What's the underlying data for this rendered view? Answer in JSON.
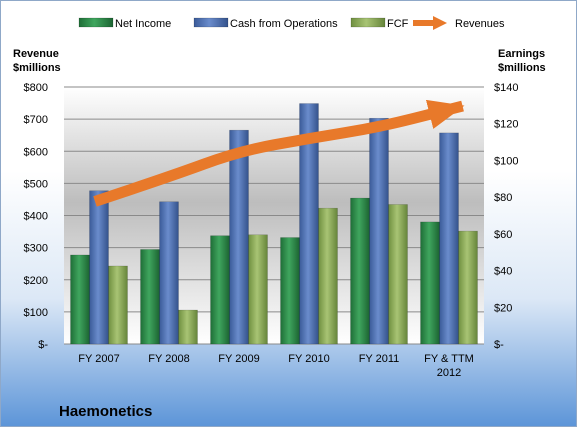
{
  "chart_data": {
    "type": "bar",
    "title": "Haemonetics",
    "categories": [
      [
        "FY 2007"
      ],
      [
        "FY 2008"
      ],
      [
        "FY 2009"
      ],
      [
        "FY 2010"
      ],
      [
        "FY 2011"
      ],
      [
        "FY & TTM",
        "2012"
      ]
    ],
    "left_axis": {
      "title": [
        "Revenue",
        "$millions"
      ],
      "ylim": [
        0,
        800
      ],
      "ticks": [
        0,
        100,
        200,
        300,
        400,
        500,
        600,
        700,
        800
      ],
      "tick_labels": [
        "$-",
        "$100",
        "$200",
        "$300",
        "$400",
        "$500",
        "$600",
        "$700",
        "$800"
      ]
    },
    "right_axis": {
      "title": [
        "Earnings",
        "$millions"
      ],
      "ylim": [
        0,
        140
      ],
      "ticks": [
        0,
        20,
        40,
        60,
        80,
        100,
        120,
        140
      ],
      "tick_labels": [
        "$-",
        "$20",
        "$40",
        "$60",
        "$80",
        "$100",
        "$120",
        "$140"
      ]
    },
    "series": [
      {
        "name": "Net Income",
        "type": "bar",
        "axis": "right",
        "color": "#2e8b4a",
        "values": [
          48.5,
          51.5,
          59,
          58,
          79.5,
          66.5
        ]
      },
      {
        "name": "Cash from Operations",
        "type": "bar",
        "axis": "right",
        "color": "#4f73b4",
        "values": [
          83.5,
          77.5,
          116.5,
          131,
          123,
          115
        ]
      },
      {
        "name": "FCF",
        "type": "bar",
        "axis": "right",
        "color": "#8fae5c",
        "values": [
          42.5,
          18.5,
          59.5,
          74,
          76,
          61.5
        ]
      },
      {
        "name": "Revenues",
        "type": "line",
        "axis": "left",
        "color": "#e8792a",
        "values": [
          450,
          520,
          600,
          640,
          675,
          730
        ]
      }
    ],
    "legend": "top",
    "grid": true
  }
}
